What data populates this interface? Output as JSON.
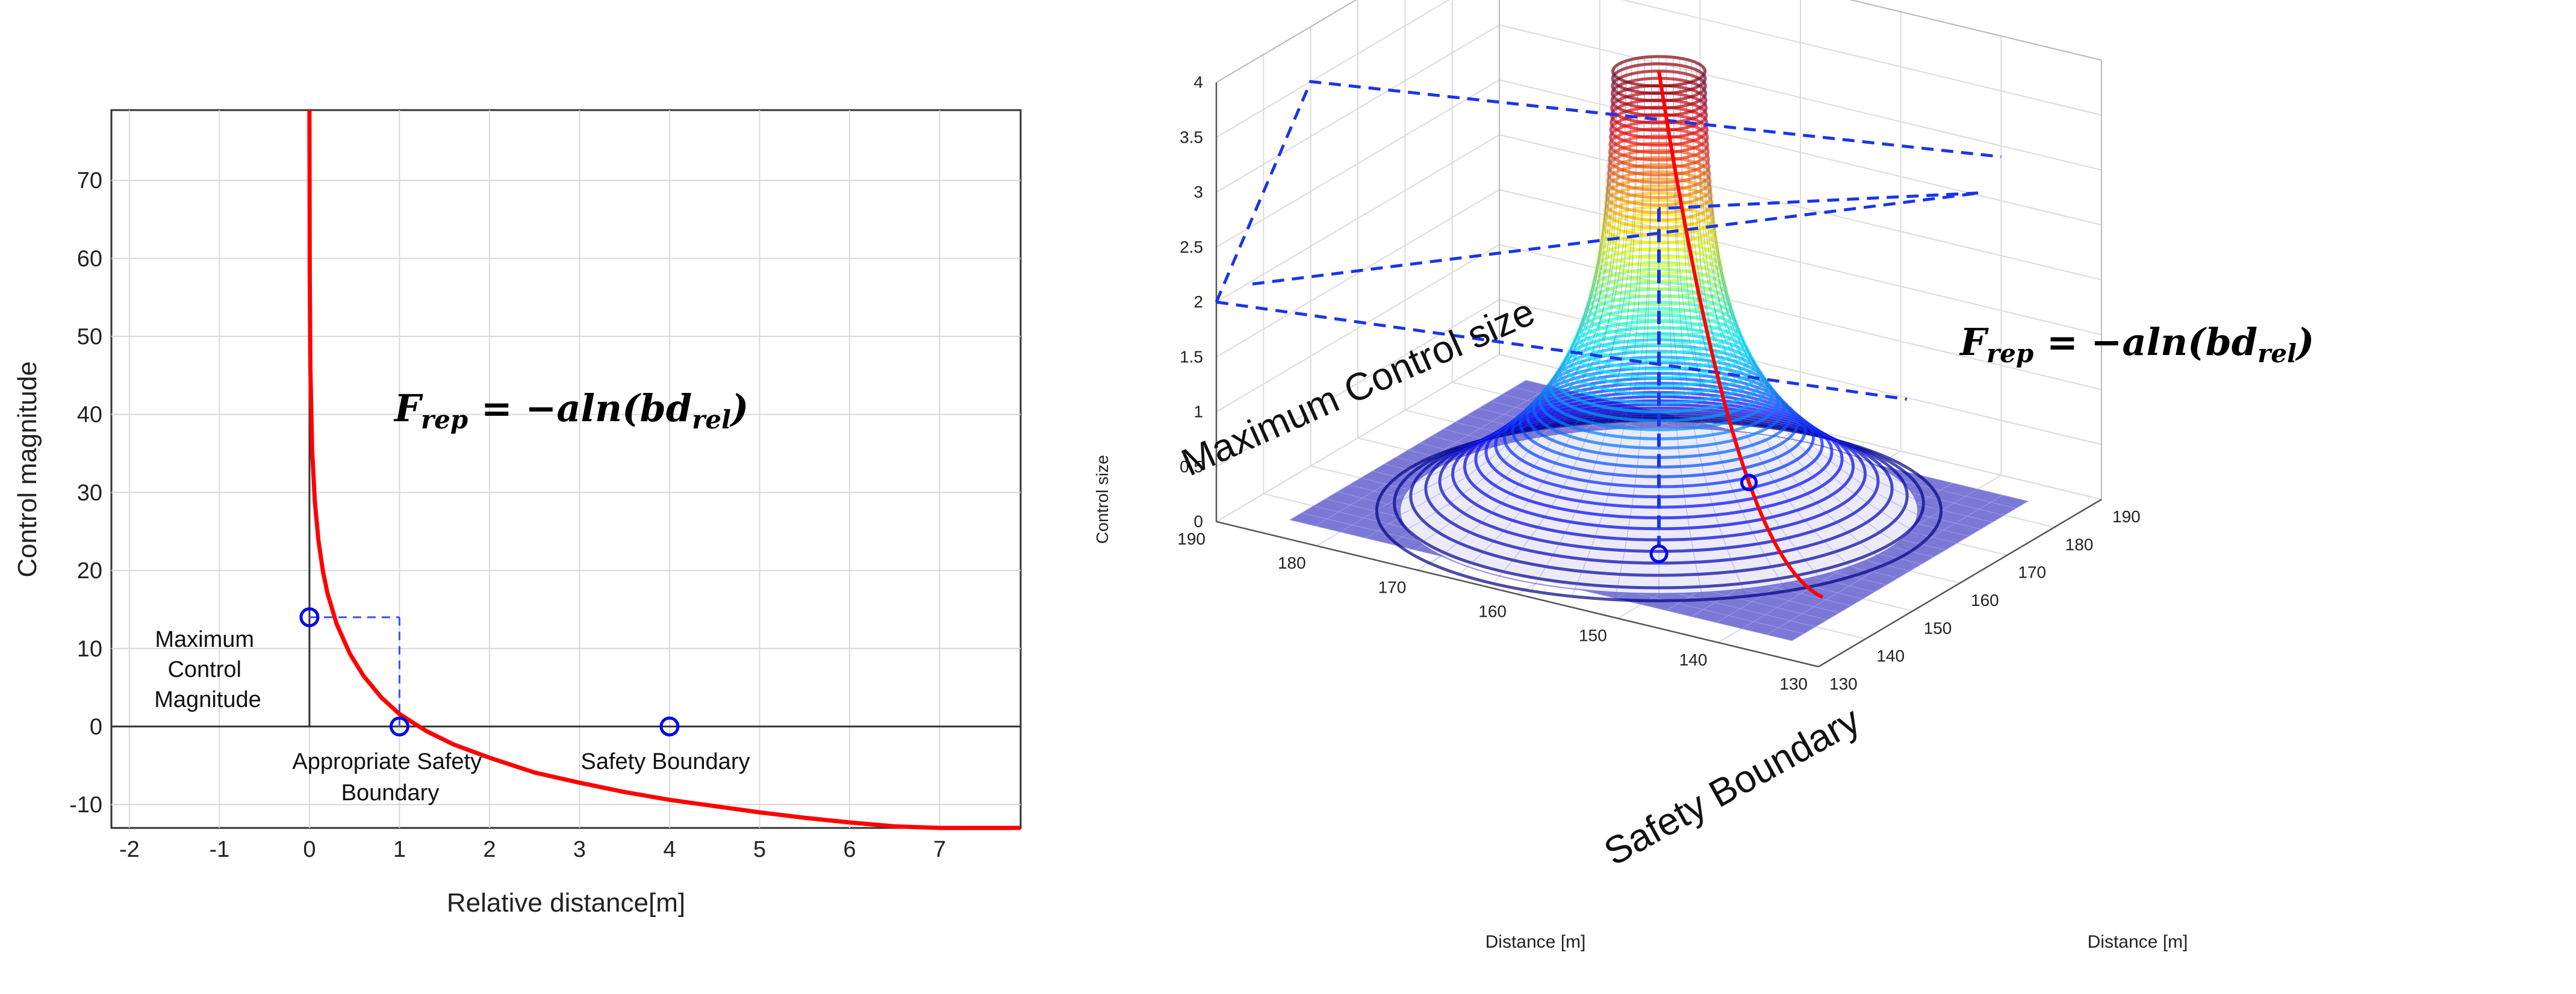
{
  "chart_data": [
    {
      "type": "line",
      "xlabel": "Relative distance[m]",
      "ylabel": "Control magnitude",
      "xlim": [
        -2.2,
        7.9
      ],
      "ylim": [
        -13,
        79
      ],
      "x_ticks": [
        "-2",
        "-1",
        "0",
        "1",
        "2",
        "3",
        "4",
        "5",
        "6",
        "7"
      ],
      "y_ticks": [
        "-10",
        "0",
        "10",
        "20",
        "30",
        "40",
        "50",
        "60",
        "70"
      ],
      "grid": true,
      "equation": {
        "base": "F",
        "sub": "rep",
        "rhs": " = −aln(bd",
        "rhs_sub": "rel",
        "close": ")"
      },
      "curve": {
        "color": "#ff0000",
        "x": [
          0.0001,
          0.003,
          0.01,
          0.03,
          0.06,
          0.1,
          0.15,
          0.2,
          0.3,
          0.45,
          0.6,
          0.8,
          1.0,
          1.3,
          1.6,
          2.0,
          2.5,
          3.0,
          3.5,
          4.0,
          4.5,
          5.0,
          5.5,
          6.0,
          6.5,
          7.0,
          7.5,
          7.9
        ],
        "y": [
          79,
          57.7,
          46.1,
          35.4,
          28.8,
          23.8,
          19.9,
          17.1,
          13.2,
          9.3,
          6.5,
          3.7,
          1.6,
          -0.6,
          -2.3,
          -4.0,
          -5.9,
          -7.2,
          -8.4,
          -9.4,
          -10.2,
          -11.0,
          -11.7,
          -12.3,
          -12.8,
          -13.3,
          -13.8,
          -14.1
        ]
      },
      "points": [
        {
          "x": 0,
          "y": 14
        },
        {
          "x": 1,
          "y": 0
        },
        {
          "x": 4,
          "y": 0
        }
      ],
      "guide": {
        "x": 1,
        "y": 14
      },
      "annotations": {
        "max_control": [
          "Maximum",
          "Control",
          "Magnitude"
        ],
        "appropriate": [
          "Appropriate Safety",
          "Boundary"
        ],
        "safety": "Safety Boundary"
      },
      "colors": {
        "curve": "#ff0000",
        "marker": "#0000ee",
        "guide": "#3355ee",
        "grid": "#d9d9d9"
      }
    },
    {
      "type": "surface",
      "x_label": "Distance [m]",
      "y_label": "Distance [m]",
      "z_label": "Control size",
      "xlim": [
        130,
        190
      ],
      "ylim": [
        130,
        190
      ],
      "zlim": [
        0,
        4
      ],
      "x_ticks": [
        "130",
        "140",
        "150",
        "160",
        "170",
        "180",
        "190"
      ],
      "y_ticks": [
        "130",
        "140",
        "150",
        "160",
        "170",
        "180",
        "190"
      ],
      "z_ticks": [
        "0",
        "0.5",
        "1",
        "1.5",
        "2",
        "2.5",
        "3",
        "3.5",
        "4"
      ],
      "peak": {
        "x": 160,
        "y": 160,
        "z": 4
      },
      "safety_radius_m": 12,
      "surface_colormap": "jet",
      "floor_color": "#7b78d6",
      "equation": {
        "base": "F",
        "sub": "rep",
        "rhs": " = −aln(bd",
        "rhs_sub": "rel",
        "close": ")"
      },
      "annotations": {
        "max_control": "Maximum Control size",
        "safety": "Safety Boundary"
      },
      "colors": {
        "curve": "#ff0000",
        "marker": "#0000ee",
        "guide": "#1a35e8"
      }
    }
  ]
}
